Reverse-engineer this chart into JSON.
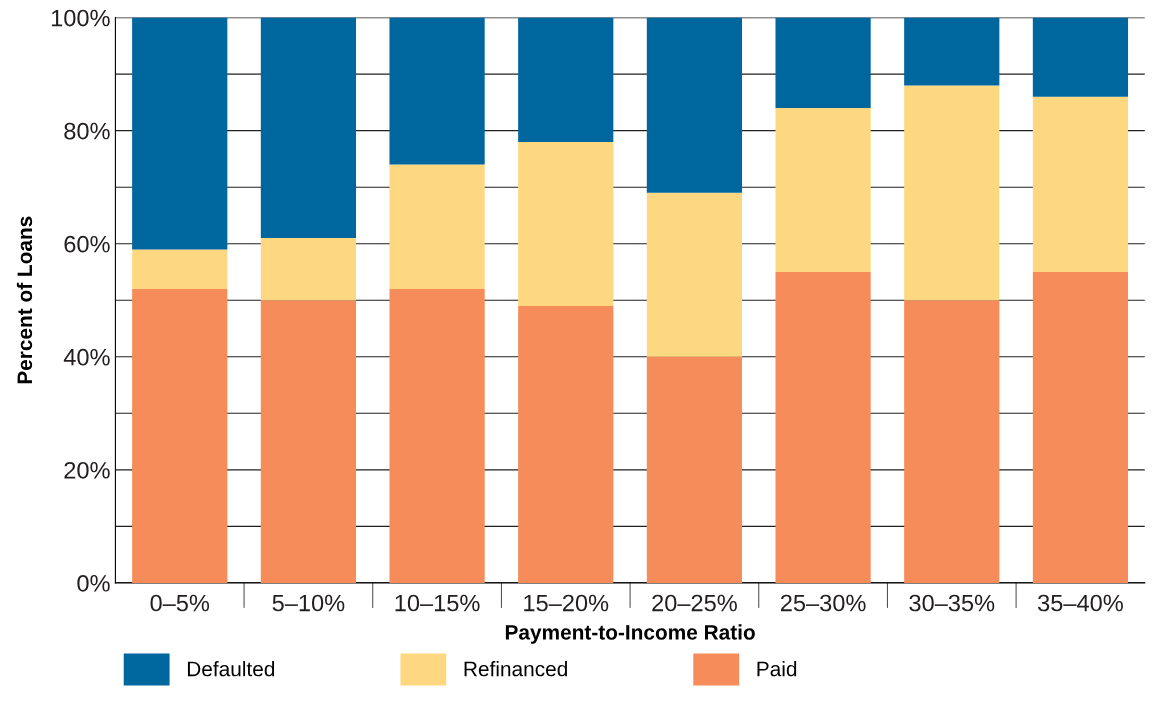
{
  "chart_data": {
    "type": "bar",
    "stacked": true,
    "xlabel": "Payment-to-Income Ratio",
    "ylabel": "Percent of Loans",
    "categories": [
      "0–5%",
      "5–10%",
      "10–15%",
      "15–20%",
      "20–25%",
      "25–30%",
      "30–35%",
      "35–40%"
    ],
    "series": [
      {
        "name": "Paid",
        "color": "#f58c5a",
        "values": [
          52,
          50,
          52,
          49,
          40,
          55,
          50,
          55
        ]
      },
      {
        "name": "Refinanced",
        "color": "#fed880",
        "values": [
          7,
          11,
          22,
          29,
          29,
          29,
          38,
          31
        ]
      },
      {
        "name": "Defaulted",
        "color": "#00669e",
        "values": [
          41,
          39,
          26,
          22,
          31,
          16,
          12,
          14
        ]
      }
    ],
    "ylim": [
      0,
      100
    ],
    "yticks": [
      {
        "value": 0,
        "label": "0%"
      },
      {
        "value": 10,
        "label": null
      },
      {
        "value": 20,
        "label": "20%"
      },
      {
        "value": 30,
        "label": null
      },
      {
        "value": 40,
        "label": "40%"
      },
      {
        "value": 50,
        "label": null
      },
      {
        "value": 60,
        "label": "60%"
      },
      {
        "value": 70,
        "label": null
      },
      {
        "value": 80,
        "label": "80%"
      },
      {
        "value": 90,
        "label": null
      },
      {
        "value": 100,
        "label": "100%"
      }
    ],
    "grid": "y",
    "legend": "bottom left"
  }
}
